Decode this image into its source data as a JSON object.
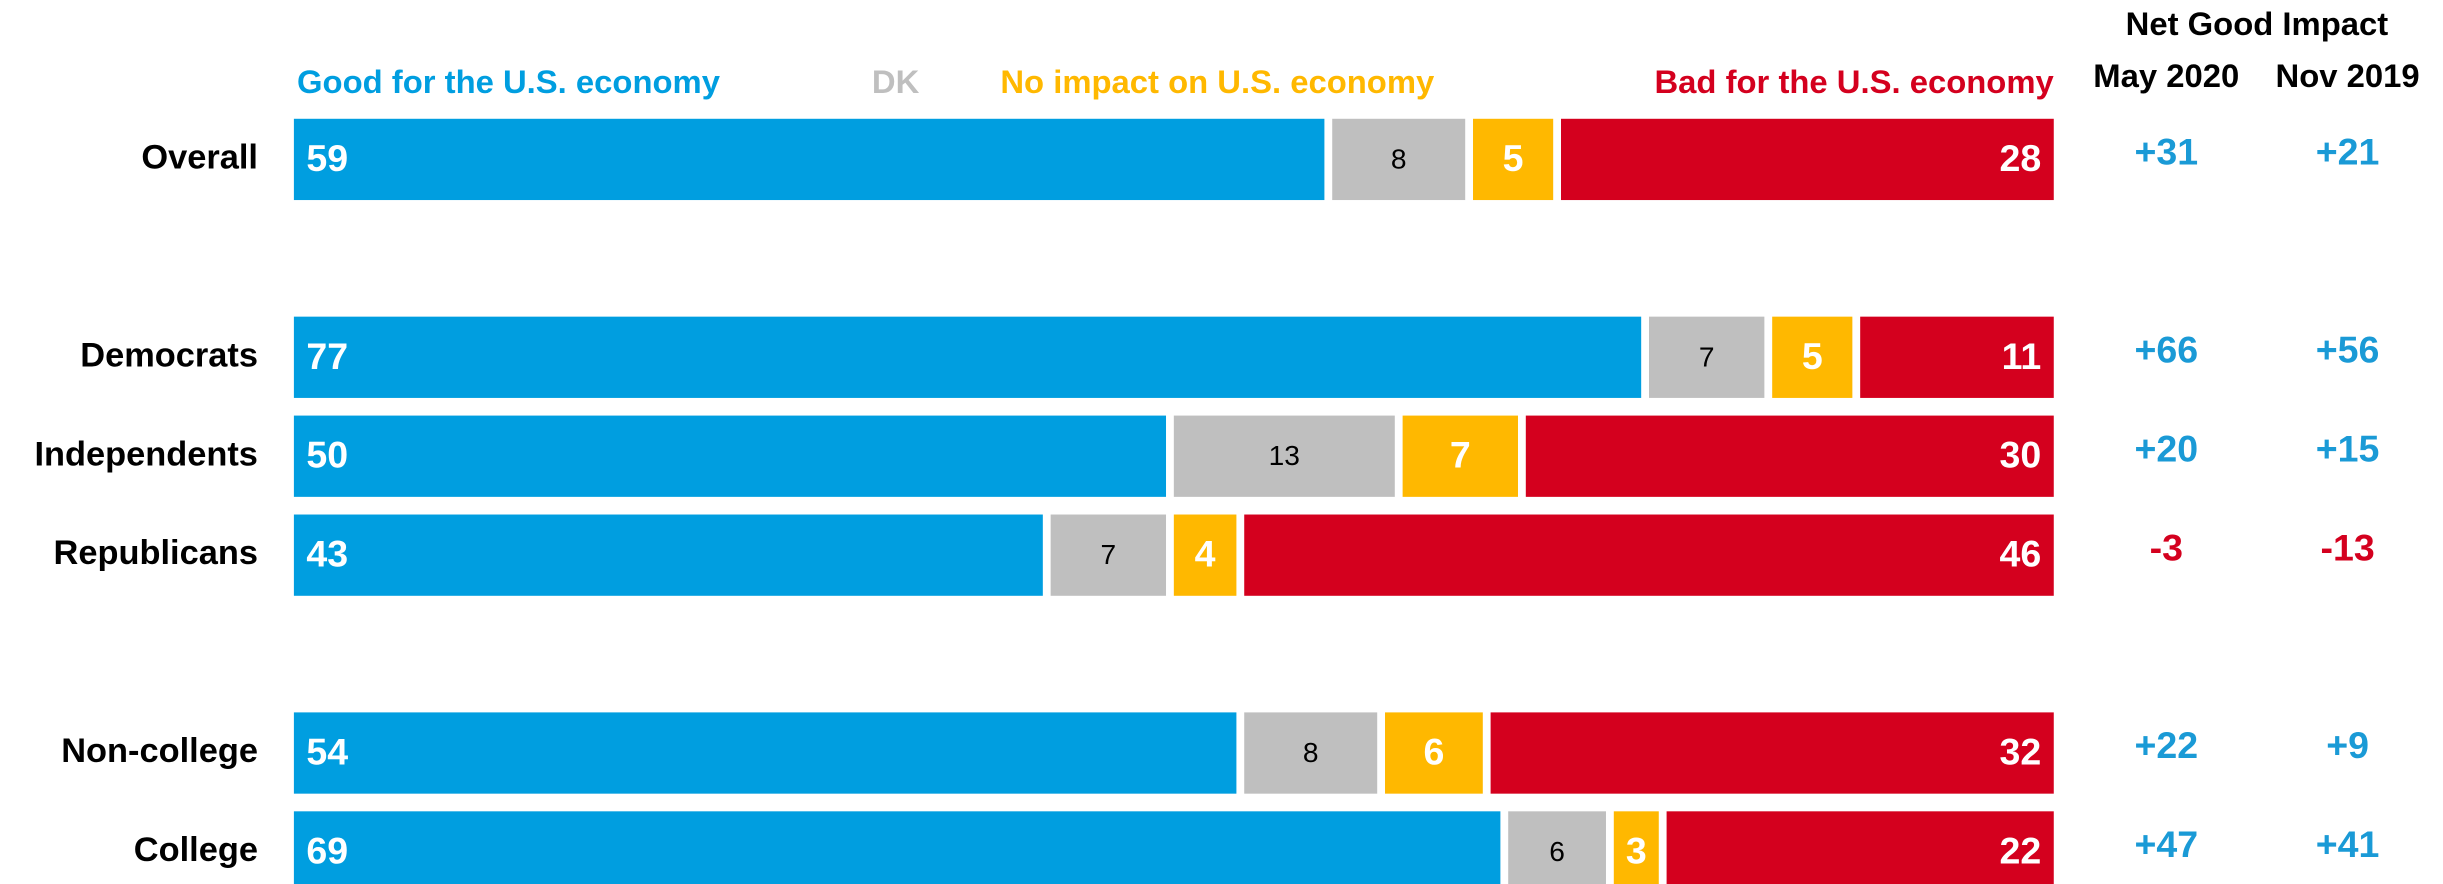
{
  "chart_data": {
    "type": "bar",
    "orientation": "horizontal",
    "stacked": true,
    "groups": [
      [
        "Overall"
      ],
      [
        "Democrats",
        "Independents",
        "Republicans"
      ],
      [
        "Non-college",
        "College"
      ]
    ],
    "series": [
      {
        "name": "Good for the U.S. economy",
        "color": "#009ee0",
        "values": [
          59,
          77,
          50,
          43,
          54,
          69
        ]
      },
      {
        "name": "DK",
        "color": "#bfbfbf",
        "values": [
          8,
          7,
          13,
          7,
          8,
          6
        ]
      },
      {
        "name": "No impact on U.S. economy",
        "color": "#ffb800",
        "values": [
          5,
          5,
          7,
          4,
          6,
          3
        ]
      },
      {
        "name": "Bad for the U.S. economy",
        "color": "#d4001e",
        "values": [
          28,
          11,
          30,
          46,
          32,
          22
        ]
      }
    ],
    "xlim": [
      0,
      100
    ],
    "net": {
      "title": "Net Good Impact",
      "positive_color": "#1a9ad6",
      "negative_color": "#d4001e",
      "columns": [
        {
          "name": "May 2020",
          "values": [
            31,
            66,
            20,
            -3,
            22,
            47
          ],
          "value_labels": [
            "+31",
            "+66",
            "+20",
            "-3",
            "+22",
            "+47"
          ]
        },
        {
          "name": "Nov 2019",
          "values": [
            21,
            56,
            15,
            -13,
            9,
            41
          ],
          "value_labels": [
            "+21",
            "+56",
            "+15",
            "-13",
            "+9",
            "+41"
          ]
        }
      ]
    }
  }
}
